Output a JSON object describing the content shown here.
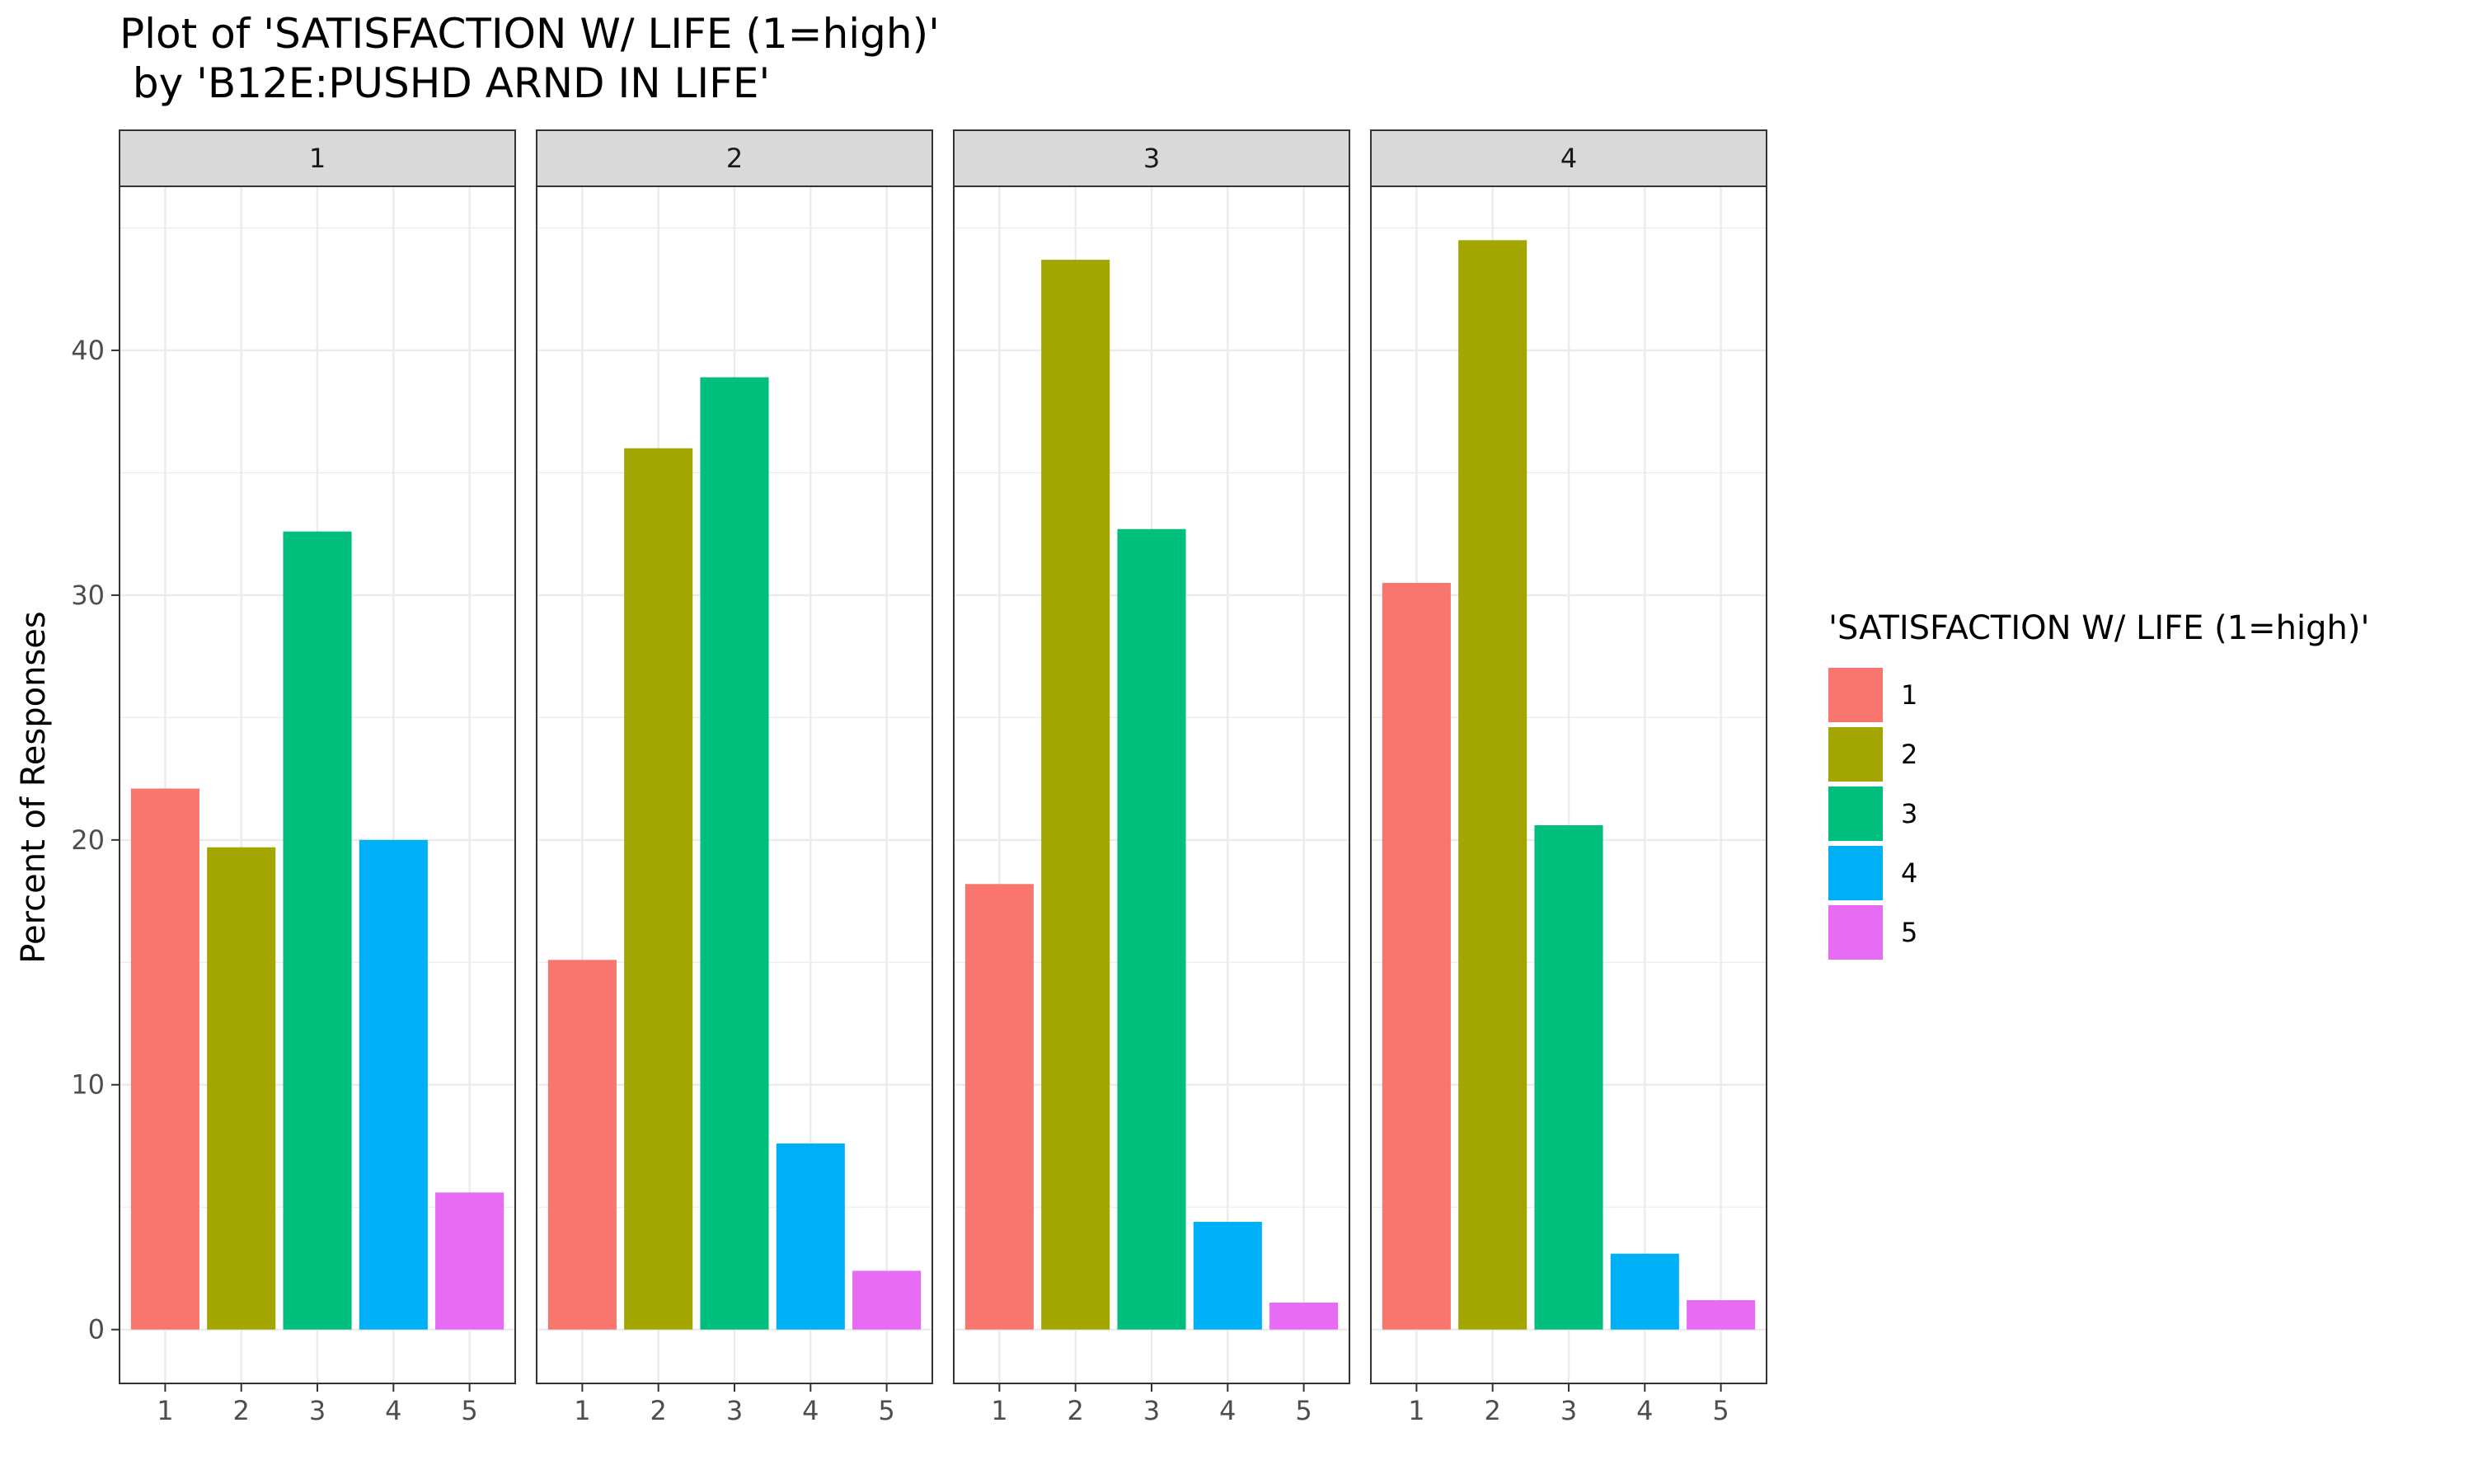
{
  "chart_data": {
    "type": "bar",
    "title_line1": "Plot of 'SATISFACTION W/ LIFE (1=high)'",
    "title_line2": " by 'B12E:PUSHD ARND IN LIFE'",
    "xlabel": "",
    "ylabel": "Percent of Responses",
    "ylim": [
      -2.2,
      46.7
    ],
    "y_ticks": [
      0,
      10,
      20,
      30,
      40
    ],
    "y_tick_labels": [
      "0",
      "10",
      "20",
      "30",
      "40"
    ],
    "categories": [
      "1",
      "2",
      "3",
      "4",
      "5"
    ],
    "grid": true,
    "legend_position": "right",
    "legend": {
      "title": "'SATISFACTION W/ LIFE (1=high)'",
      "items": [
        {
          "label": "1",
          "color": "#F8766D"
        },
        {
          "label": "2",
          "color": "#A3A500"
        },
        {
          "label": "3",
          "color": "#00BF7D"
        },
        {
          "label": "4",
          "color": "#00B0F6"
        },
        {
          "label": "5",
          "color": "#E76BF3"
        }
      ]
    },
    "panels": [
      {
        "label": "1",
        "values": [
          22.1,
          19.7,
          32.6,
          20.0,
          5.6
        ]
      },
      {
        "label": "2",
        "values": [
          15.1,
          36.0,
          38.9,
          7.6,
          2.4
        ]
      },
      {
        "label": "3",
        "values": [
          18.2,
          43.7,
          32.7,
          4.4,
          1.1
        ]
      },
      {
        "label": "4",
        "values": [
          30.5,
          44.5,
          20.6,
          3.1,
          1.2
        ]
      }
    ]
  }
}
